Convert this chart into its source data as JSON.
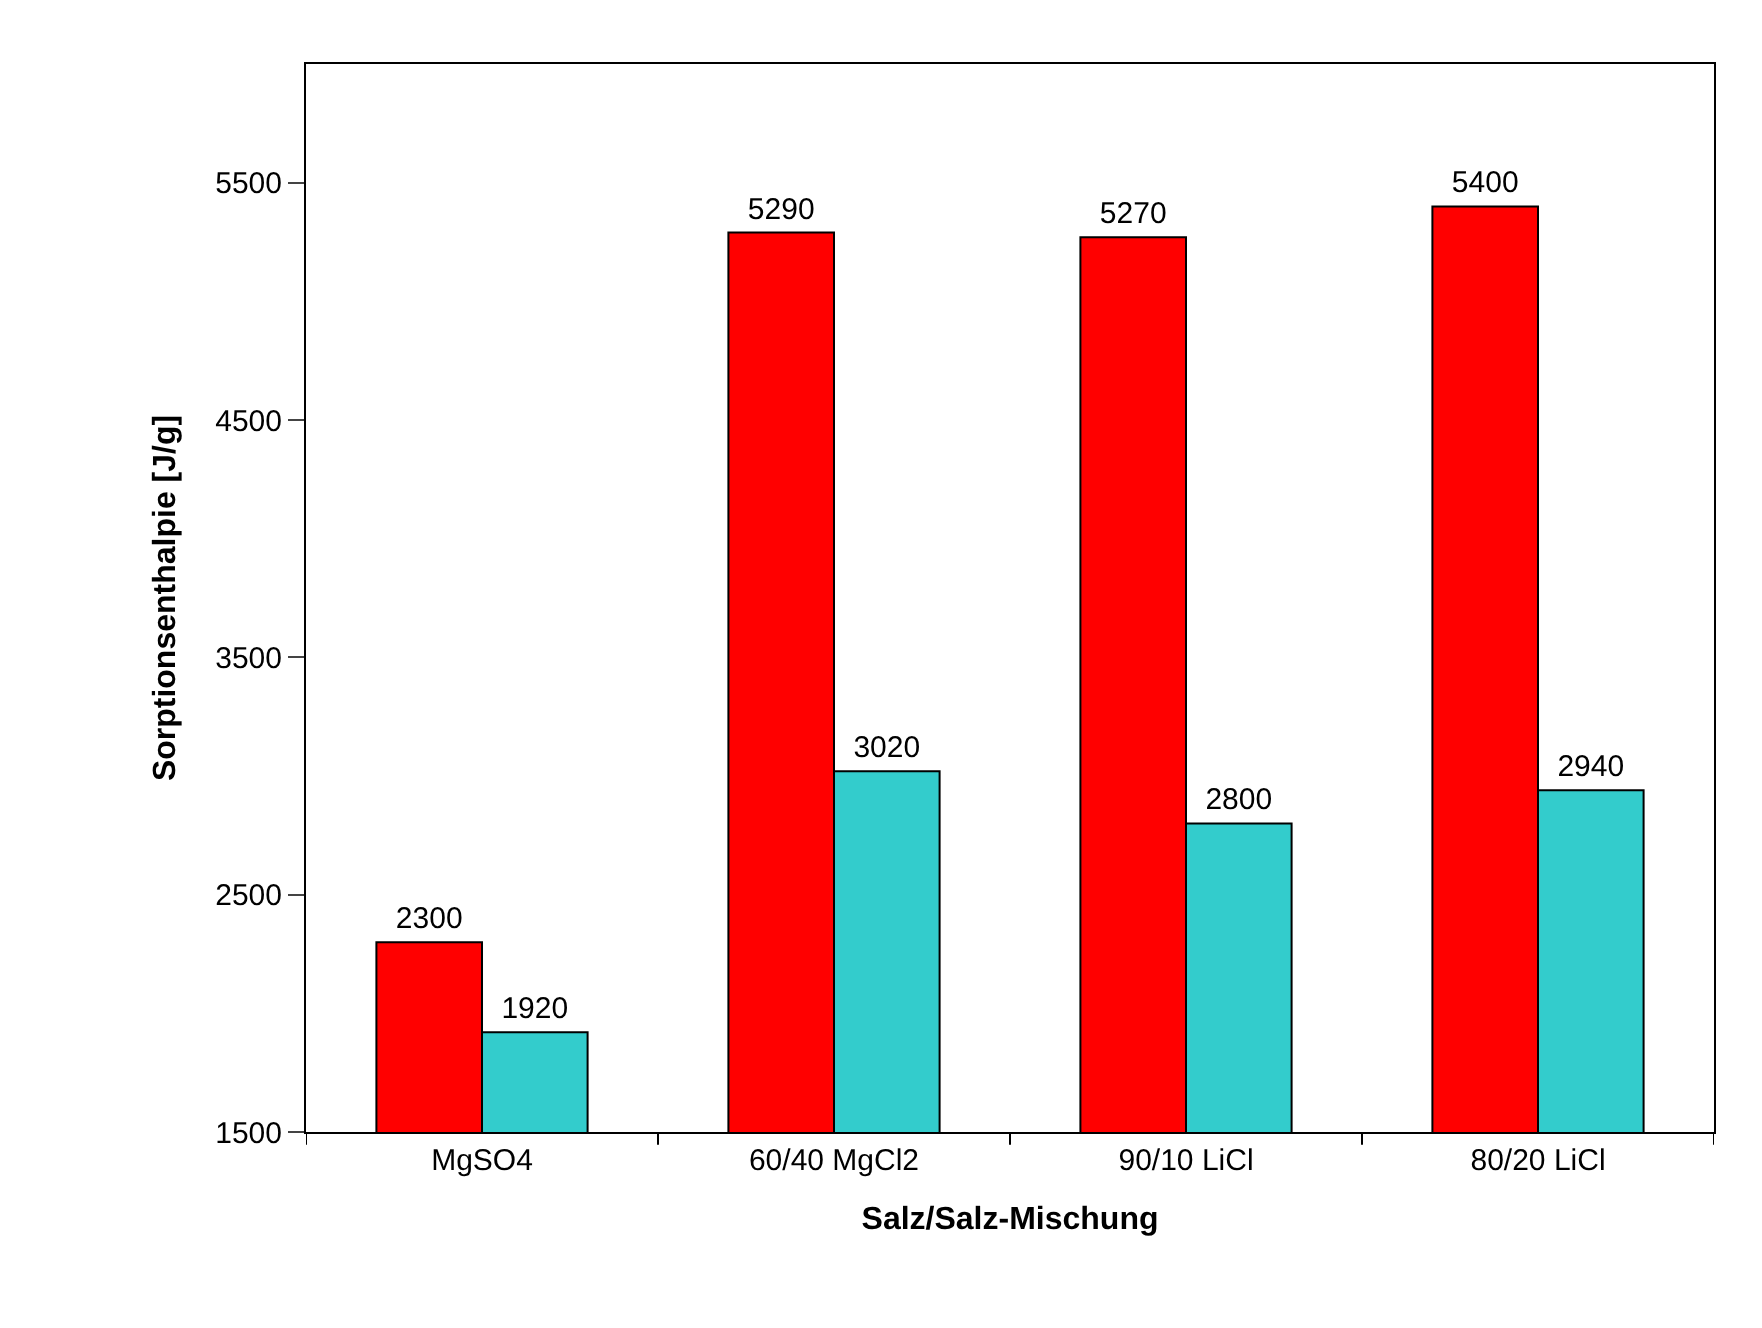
{
  "chart_data": {
    "type": "bar",
    "xlabel": "Salz/Salz-Mischung",
    "ylabel": "Sorptionsenthalpie [J/g]",
    "categories": [
      "MgSO4",
      "60/40 MgCl2",
      "90/10 LiCl",
      "80/20 LiCl"
    ],
    "series": [
      {
        "color": "#ff0000",
        "values": [
          2300,
          5290,
          5270,
          5400
        ]
      },
      {
        "color": "#33cccc",
        "values": [
          1920,
          3020,
          2800,
          2940
        ]
      }
    ],
    "ylim": [
      1500,
      6000
    ],
    "yticks": [
      1500,
      2500,
      3500,
      4500,
      5500
    ],
    "data_labels": true
  }
}
